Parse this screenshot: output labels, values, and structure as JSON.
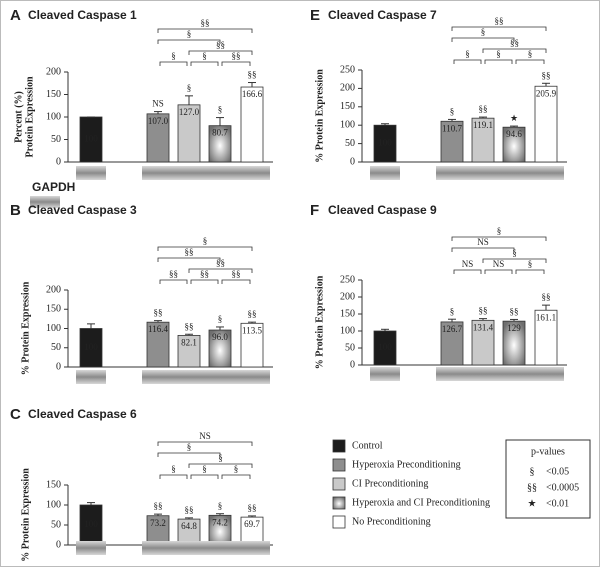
{
  "chart_data": [
    {
      "type": "bar",
      "panel": "A",
      "title": "Cleaved Caspase 1",
      "y_label": [
        "Percent (%)",
        "Protein Expression"
      ],
      "blot_label": "GAPDH",
      "values": [
        100,
        107.0,
        127.0,
        80.7,
        166.6
      ],
      "value_labels": [
        "100",
        "107.0",
        "127.0",
        "80.7",
        "166.6"
      ],
      "errors": [
        0,
        5,
        20,
        18,
        10
      ],
      "symbols": [
        null,
        "NS",
        "§",
        "§",
        "§§"
      ],
      "brackets": [
        {
          "from": 1,
          "to": 2,
          "label": "§"
        },
        {
          "from": 2,
          "to": 3,
          "label": "§"
        },
        {
          "from": 3,
          "to": 4,
          "label": "§§"
        },
        {
          "from": 2,
          "to": 4,
          "label": "§§"
        },
        {
          "from": 1,
          "to": 3,
          "label": "§"
        },
        {
          "from": 1,
          "to": 4,
          "label": "§§"
        }
      ],
      "ylim": [
        0,
        200
      ],
      "yticks": [
        0,
        50,
        100,
        150,
        200
      ]
    },
    {
      "type": "bar",
      "panel": "B",
      "title": "Cleaved Caspase 3",
      "y_label": [
        "% Protein Expression"
      ],
      "values": [
        100,
        116.4,
        82.1,
        96.0,
        113.5
      ],
      "value_labels": [
        "100",
        "116.4",
        "82.1",
        "96.0",
        "113.5"
      ],
      "errors": [
        12,
        4,
        3,
        8,
        3
      ],
      "symbols": [
        null,
        "§§",
        "§§",
        "§",
        "§§"
      ],
      "brackets": [
        {
          "from": 1,
          "to": 2,
          "label": "§§"
        },
        {
          "from": 2,
          "to": 3,
          "label": "§§"
        },
        {
          "from": 3,
          "to": 4,
          "label": "§§"
        },
        {
          "from": 2,
          "to": 4,
          "label": "§§"
        },
        {
          "from": 1,
          "to": 3,
          "label": "§§"
        },
        {
          "from": 1,
          "to": 4,
          "label": "§"
        }
      ],
      "ylim": [
        0,
        200
      ],
      "yticks": [
        0,
        50,
        100,
        150,
        200
      ]
    },
    {
      "type": "bar",
      "panel": "C",
      "title": "Cleaved Caspase 6",
      "y_label": [
        "% Protein Expression"
      ],
      "values": [
        100,
        73.2,
        64.8,
        74.2,
        69.7
      ],
      "value_labels": [
        "100",
        "73.2",
        "64.8",
        "74.2",
        "69.7"
      ],
      "errors": [
        6,
        4,
        3,
        4,
        3
      ],
      "symbols": [
        null,
        "§§",
        "§§",
        "§",
        "§§"
      ],
      "brackets": [
        {
          "from": 1,
          "to": 2,
          "label": "§"
        },
        {
          "from": 2,
          "to": 3,
          "label": "§"
        },
        {
          "from": 3,
          "to": 4,
          "label": "§"
        },
        {
          "from": 2,
          "to": 4,
          "label": "§"
        },
        {
          "from": 1,
          "to": 3,
          "label": "§"
        },
        {
          "from": 1,
          "to": 4,
          "label": "NS"
        }
      ],
      "ylim": [
        0,
        150
      ],
      "yticks": [
        0,
        50,
        100,
        150
      ]
    },
    {
      "type": "bar",
      "panel": "E",
      "title": "Cleaved Caspase 7",
      "y_label": [
        "% Protein Expression"
      ],
      "values": [
        100,
        110.7,
        119.1,
        94.6,
        205.9
      ],
      "value_labels": [
        "100",
        "110.7",
        "119.1",
        "94.6",
        "205.9"
      ],
      "errors": [
        4,
        5,
        3,
        3,
        8
      ],
      "symbols": [
        null,
        "§",
        "§§",
        "★",
        "§§"
      ],
      "brackets": [
        {
          "from": 1,
          "to": 2,
          "label": "§"
        },
        {
          "from": 2,
          "to": 3,
          "label": "§"
        },
        {
          "from": 3,
          "to": 4,
          "label": "§"
        },
        {
          "from": 2,
          "to": 4,
          "label": "§§"
        },
        {
          "from": 1,
          "to": 3,
          "label": "§"
        },
        {
          "from": 1,
          "to": 4,
          "label": "§§"
        }
      ],
      "ylim": [
        0,
        250
      ],
      "yticks": [
        0,
        50,
        100,
        150,
        200,
        250
      ]
    },
    {
      "type": "bar",
      "panel": "F",
      "title": "Cleaved Caspase 9",
      "y_label": [
        "% Protein Expression"
      ],
      "values": [
        100,
        126.7,
        131.4,
        129,
        161.1
      ],
      "value_labels": [
        "100",
        "126.7",
        "131.4",
        "129",
        "161.1"
      ],
      "errors": [
        5,
        8,
        5,
        5,
        15
      ],
      "symbols": [
        null,
        "§",
        "§§",
        "§§",
        "§§"
      ],
      "brackets": [
        {
          "from": 1,
          "to": 2,
          "label": "NS"
        },
        {
          "from": 2,
          "to": 3,
          "label": "NS"
        },
        {
          "from": 3,
          "to": 4,
          "label": "§"
        },
        {
          "from": 2,
          "to": 4,
          "label": "§"
        },
        {
          "from": 1,
          "to": 3,
          "label": "NS"
        },
        {
          "from": 1,
          "to": 4,
          "label": "§"
        }
      ],
      "ylim": [
        0,
        250
      ],
      "yticks": [
        0,
        50,
        100,
        150,
        200,
        250
      ]
    }
  ],
  "legend": [
    {
      "label": "Control",
      "color": "#1c1c1c"
    },
    {
      "label": "Hyperoxia Preconditioning",
      "color": "#8e8e8e"
    },
    {
      "label": "CI Preconditioning",
      "color": "#c9c9c9"
    },
    {
      "label": "Hyperoxia and CI Preconditioning",
      "color": "#8a8a8a",
      "style": "gradient"
    },
    {
      "label": "No Preconditioning",
      "color": "#ffffff"
    }
  ],
  "p_values": {
    "title": "p-values",
    "entries": [
      {
        "symbol": "§",
        "label": "<0.05"
      },
      {
        "symbol": "§§",
        "label": "<0.0005"
      },
      {
        "symbol": "★",
        "label": "<0.01"
      }
    ]
  }
}
